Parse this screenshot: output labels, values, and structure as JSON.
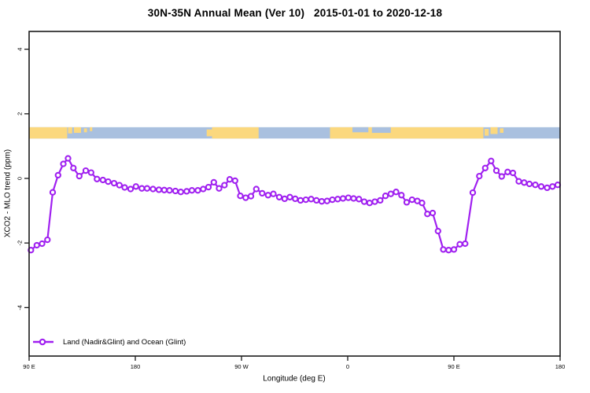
{
  "title": "30N-35N Annual Mean (Ver 10)   2015-01-01 to 2020-12-18",
  "legend": {
    "label": "Land (Nadir&Glint) and Ocean (Glint)"
  },
  "colors": {
    "series": "#A020F0",
    "land": "#FBD87E",
    "ocean": "#A9C0DF",
    "axis": "#1a1a1a",
    "background": "#FFFFFF"
  },
  "chart_data": {
    "type": "line",
    "title": "30N-35N Annual Mean (Ver 10)   2015-01-01 to 2020-12-18",
    "xlabel": "Longitude (deg E)",
    "ylabel": "XCO2 - MLO trend (ppm)",
    "xlim": [
      90,
      540
    ],
    "ylim": [
      -5.5,
      4.55
    ],
    "grid": false,
    "legend_position": "bottom-left-inside",
    "xticks": [
      {
        "lon": 90,
        "label": "90 E"
      },
      {
        "lon": 180,
        "label": "180"
      },
      {
        "lon": 270,
        "label": "90 W"
      },
      {
        "lon": 360,
        "label": "0"
      },
      {
        "lon": 450,
        "label": "90 E"
      },
      {
        "lon": 540,
        "label": "180"
      }
    ],
    "yticks": [
      {
        "value": -4,
        "label": "-4"
      },
      {
        "value": -2,
        "label": "-2"
      },
      {
        "value": 0,
        "label": "0"
      },
      {
        "value": 2,
        "label": "2"
      },
      {
        "value": 4,
        "label": "4"
      }
    ],
    "series": [
      {
        "name": "Land (Nadir&Glint) and Ocean (Glint)",
        "color": "#A020F0",
        "marker": "open-circle",
        "points": [
          [
            91.5,
            -2.22
          ],
          [
            96.5,
            -2.07
          ],
          [
            101,
            -2.02
          ],
          [
            105.5,
            -1.9
          ],
          [
            110,
            -0.43
          ],
          [
            114.5,
            0.1
          ],
          [
            119,
            0.45
          ],
          [
            123,
            0.62
          ],
          [
            127.5,
            0.32
          ],
          [
            132.5,
            0.07
          ],
          [
            138,
            0.24
          ],
          [
            142.5,
            0.18
          ],
          [
            147.5,
            -0.02
          ],
          [
            152.5,
            -0.05
          ],
          [
            157,
            -0.1
          ],
          [
            162,
            -0.15
          ],
          [
            166.5,
            -0.21
          ],
          [
            171,
            -0.28
          ],
          [
            176,
            -0.33
          ],
          [
            180.5,
            -0.25
          ],
          [
            185.5,
            -0.31
          ],
          [
            190,
            -0.31
          ],
          [
            195,
            -0.33
          ],
          [
            200,
            -0.35
          ],
          [
            204.5,
            -0.36
          ],
          [
            209,
            -0.37
          ],
          [
            214,
            -0.39
          ],
          [
            218.5,
            -0.42
          ],
          [
            223.5,
            -0.4
          ],
          [
            228,
            -0.37
          ],
          [
            233,
            -0.37
          ],
          [
            237.5,
            -0.33
          ],
          [
            242,
            -0.27
          ],
          [
            246.5,
            -0.12
          ],
          [
            251,
            -0.31
          ],
          [
            255.5,
            -0.21
          ],
          [
            260,
            -0.03
          ],
          [
            264.5,
            -0.07
          ],
          [
            269,
            -0.54
          ],
          [
            273.5,
            -0.6
          ],
          [
            278,
            -0.55
          ],
          [
            282.5,
            -0.33
          ],
          [
            287.5,
            -0.46
          ],
          [
            292.5,
            -0.52
          ],
          [
            297,
            -0.48
          ],
          [
            302,
            -0.58
          ],
          [
            306.5,
            -0.63
          ],
          [
            311,
            -0.58
          ],
          [
            315.5,
            -0.63
          ],
          [
            320,
            -0.68
          ],
          [
            324.5,
            -0.66
          ],
          [
            329,
            -0.64
          ],
          [
            333.5,
            -0.68
          ],
          [
            338,
            -0.71
          ],
          [
            342.5,
            -0.7
          ],
          [
            347,
            -0.66
          ],
          [
            351.5,
            -0.64
          ],
          [
            356,
            -0.62
          ],
          [
            360.5,
            -0.6
          ],
          [
            365,
            -0.62
          ],
          [
            369.5,
            -0.64
          ],
          [
            374,
            -0.72
          ],
          [
            378.5,
            -0.76
          ],
          [
            383,
            -0.72
          ],
          [
            387.5,
            -0.68
          ],
          [
            392,
            -0.54
          ],
          [
            396.5,
            -0.48
          ],
          [
            401,
            -0.42
          ],
          [
            405.5,
            -0.52
          ],
          [
            410,
            -0.74
          ],
          [
            414.5,
            -0.66
          ],
          [
            419,
            -0.7
          ],
          [
            423,
            -0.76
          ],
          [
            427.5,
            -1.1
          ],
          [
            432,
            -1.07
          ],
          [
            436.5,
            -1.63
          ],
          [
            441,
            -2.2
          ],
          [
            445.5,
            -2.22
          ],
          [
            450,
            -2.2
          ],
          [
            455,
            -2.04
          ],
          [
            459.5,
            -2.02
          ],
          [
            466,
            -0.44
          ],
          [
            471.5,
            0.07
          ],
          [
            476.5,
            0.32
          ],
          [
            481.5,
            0.54
          ],
          [
            486,
            0.24
          ],
          [
            490.5,
            0.06
          ],
          [
            495.5,
            0.2
          ],
          [
            500,
            0.17
          ],
          [
            505,
            -0.09
          ],
          [
            509.5,
            -0.13
          ],
          [
            514,
            -0.17
          ],
          [
            519,
            -0.2
          ],
          [
            524,
            -0.25
          ],
          [
            529,
            -0.29
          ],
          [
            533.5,
            -0.25
          ],
          [
            538,
            -0.2
          ]
        ]
      }
    ],
    "map_strip": {
      "description": "land/ocean world strip at ~1.4 ppm",
      "top_value": 1.585,
      "bottom_value": 1.235,
      "ocean_color": "#A9C0DF",
      "land_color": "#FBD87E",
      "land_segments": [
        [
          90,
          122.3,
          0,
          1
        ],
        [
          123,
          126.5,
          0,
          0.55
        ],
        [
          128,
          134,
          0,
          0.5
        ],
        [
          136.5,
          139,
          0.1,
          0.45
        ],
        [
          141.5,
          143.5,
          0,
          0.35
        ],
        [
          240.5,
          245,
          0.2,
          0.8
        ],
        [
          245,
          284.5,
          0,
          1
        ],
        [
          345,
          475,
          0,
          1
        ],
        [
          476,
          479.5,
          0.15,
          0.75
        ],
        [
          481,
          487,
          0,
          0.6
        ],
        [
          489,
          492,
          0.1,
          0.5
        ]
      ],
      "ocean_patches": [
        [
          364,
          377.5,
          0,
          0.45
        ],
        [
          380.5,
          396.5,
          0,
          0.5
        ]
      ]
    }
  }
}
